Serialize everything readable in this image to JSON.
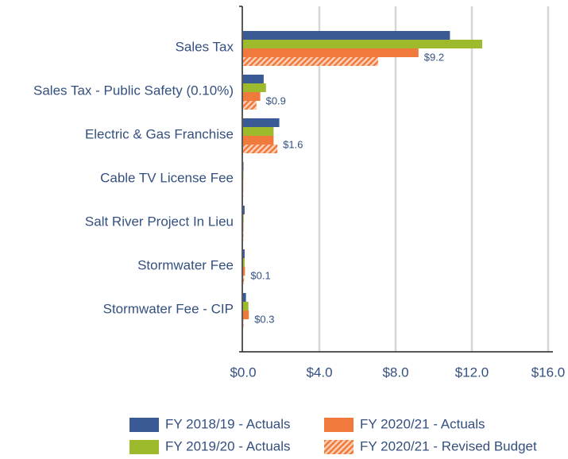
{
  "chart_data": {
    "type": "hbar",
    "categories": [
      "Sales Tax",
      "Sales Tax - Public Safety (0.10%)",
      "Electric & Gas Franchise",
      "Cable TV License Fee",
      "Salt River Project In Lieu",
      "Stormwater Fee",
      "Stormwater Fee - CIP"
    ],
    "series": [
      {
        "name": "FY 2018/19 - Actuals",
        "color": "#3a5a96",
        "values": [
          10.85,
          1.08,
          1.9,
          0.02,
          0.08,
          0.08,
          0.15
        ]
      },
      {
        "name": "FY 2019/20 - Actuals",
        "color": "#9cba2c",
        "values": [
          12.54,
          1.2,
          1.6,
          0.02,
          0.03,
          0.08,
          0.28
        ]
      },
      {
        "name": "FY 2020/21 - Actuals",
        "color": "#f07a3c",
        "values": [
          9.2,
          0.9,
          1.6,
          0.01,
          0.02,
          0.1,
          0.3
        ],
        "value_labels": [
          "$9.2",
          "$0.9",
          "$1.6",
          null,
          null,
          "$0.1",
          "$0.3"
        ]
      },
      {
        "name": "FY 2020/21 - Revised Budget",
        "color": "#f07a3c",
        "hatch": true,
        "values": [
          7.08,
          0.7,
          1.8,
          0.01,
          0.02,
          0.05,
          0.02
        ]
      }
    ],
    "xlim": [
      0,
      16
    ],
    "xticks": [
      {
        "value": 0,
        "label": "$0.0"
      },
      {
        "value": 4,
        "label": "$4.0"
      },
      {
        "value": 8,
        "label": "$8.0"
      },
      {
        "value": 12,
        "label": "$12.0"
      },
      {
        "value": 16,
        "label": "$16.0"
      }
    ],
    "grid": true,
    "legend": "bottom"
  }
}
